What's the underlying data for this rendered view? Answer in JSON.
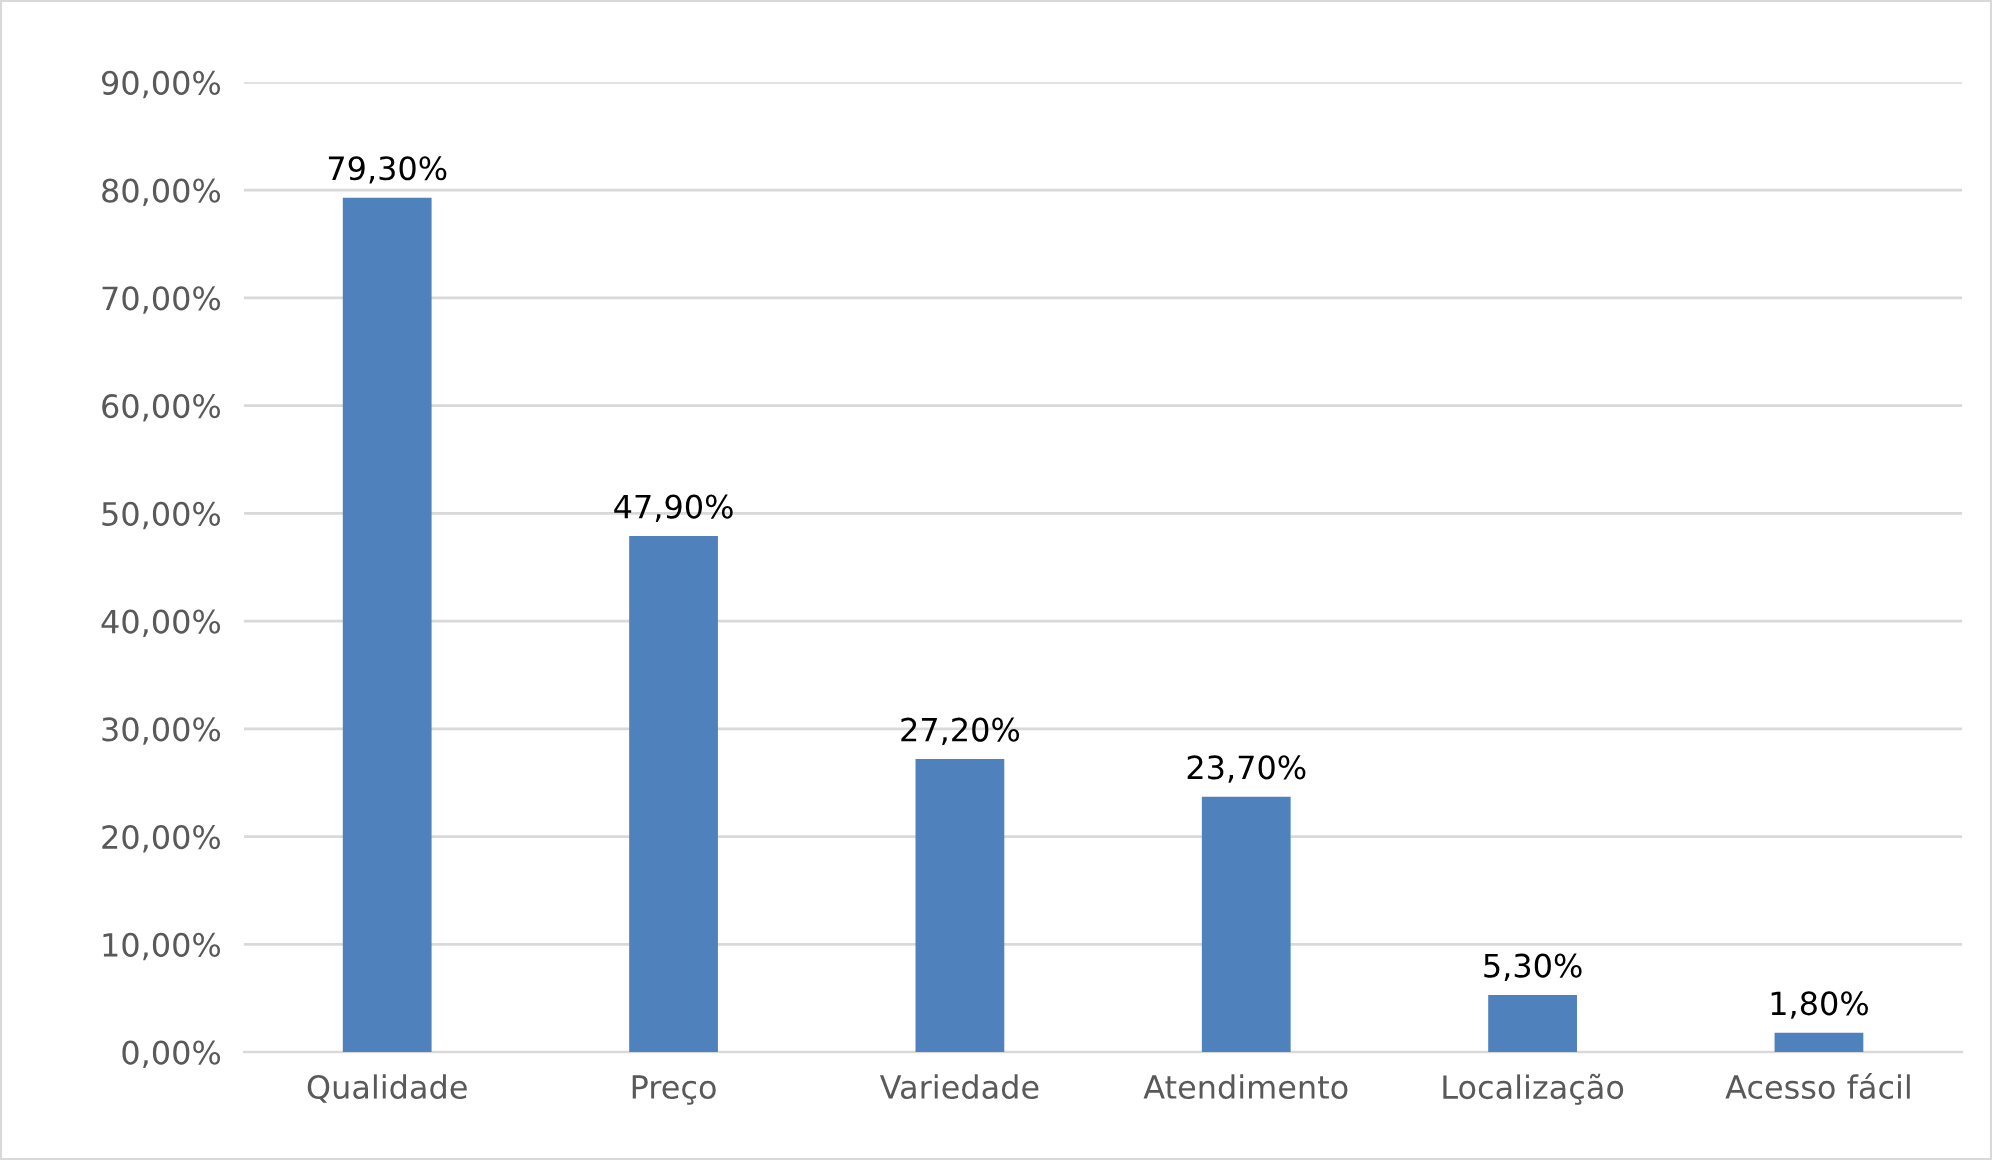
{
  "chart_data": {
    "type": "bar",
    "categories": [
      "Qualidade",
      "Preço",
      "Variedade",
      "Atendimento",
      "Localização",
      "Acesso fácil"
    ],
    "values": [
      79.3,
      47.9,
      27.2,
      23.7,
      5.3,
      1.8
    ],
    "value_labels": [
      "79,30%",
      "47,90%",
      "27,20%",
      "23,70%",
      "5,30%",
      "1,80%"
    ],
    "color": "#4f81bd",
    "ylim": [
      0,
      90
    ],
    "yticks": [
      {
        "value": 0,
        "label": "0,00%"
      },
      {
        "value": 10,
        "label": "10,00%"
      },
      {
        "value": 20,
        "label": "20,00%"
      },
      {
        "value": 30,
        "label": "30,00%"
      },
      {
        "value": 40,
        "label": "40,00%"
      },
      {
        "value": 50,
        "label": "50,00%"
      },
      {
        "value": 60,
        "label": "60,00%"
      },
      {
        "value": 70,
        "label": "70,00%"
      },
      {
        "value": 80,
        "label": "80,00%"
      },
      {
        "value": 90,
        "label": "90,00%"
      }
    ],
    "grid": "y",
    "legend": false
  }
}
